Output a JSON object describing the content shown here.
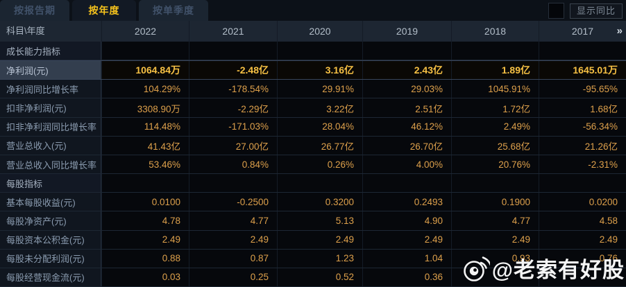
{
  "tabs": [
    {
      "label": "按报告期",
      "active": false
    },
    {
      "label": "按年度",
      "active": true
    },
    {
      "label": "按单季度",
      "active": false
    }
  ],
  "controls": {
    "show_yoy_label": "显示同比",
    "checkbox_checked": false
  },
  "table": {
    "corner_header": "科目\\年度",
    "years": [
      "2022",
      "2021",
      "2020",
      "2019",
      "2018",
      "2017"
    ],
    "more_icon": "»",
    "rows": [
      {
        "type": "section",
        "label": "成长能力指标",
        "values": [
          "",
          "",
          "",
          "",
          "",
          ""
        ]
      },
      {
        "type": "data",
        "label": "净利润(元)",
        "highlight": true,
        "values": [
          "1064.84万",
          "-2.48亿",
          "3.16亿",
          "2.43亿",
          "1.89亿",
          "1645.01万"
        ]
      },
      {
        "type": "data",
        "label": "净利润同比增长率",
        "values": [
          "104.29%",
          "-178.54%",
          "29.91%",
          "29.03%",
          "1045.91%",
          "-95.65%"
        ]
      },
      {
        "type": "data",
        "label": "扣非净利润(元)",
        "values": [
          "3308.90万",
          "-2.29亿",
          "3.22亿",
          "2.51亿",
          "1.72亿",
          "1.68亿"
        ]
      },
      {
        "type": "data",
        "label": "扣非净利润同比增长率",
        "values": [
          "114.48%",
          "-171.03%",
          "28.04%",
          "46.12%",
          "2.49%",
          "-56.34%"
        ]
      },
      {
        "type": "data",
        "label": "营业总收入(元)",
        "values": [
          "41.43亿",
          "27.00亿",
          "26.77亿",
          "26.70亿",
          "25.68亿",
          "21.26亿"
        ]
      },
      {
        "type": "data",
        "label": "营业总收入同比增长率",
        "values": [
          "53.46%",
          "0.84%",
          "0.26%",
          "4.00%",
          "20.76%",
          "-2.31%"
        ]
      },
      {
        "type": "section",
        "label": "每股指标",
        "values": [
          "",
          "",
          "",
          "",
          "",
          ""
        ]
      },
      {
        "type": "data",
        "label": "基本每股收益(元)",
        "values": [
          "0.0100",
          "-0.2500",
          "0.3200",
          "0.2493",
          "0.1900",
          "0.0200"
        ]
      },
      {
        "type": "data",
        "label": "每股净资产(元)",
        "values": [
          "4.78",
          "4.77",
          "5.13",
          "4.90",
          "4.77",
          "4.58"
        ]
      },
      {
        "type": "data",
        "label": "每股资本公积金(元)",
        "values": [
          "2.49",
          "2.49",
          "2.49",
          "2.49",
          "2.49",
          "2.49"
        ]
      },
      {
        "type": "data",
        "label": "每股未分配利润(元)",
        "values": [
          "0.88",
          "0.87",
          "1.23",
          "1.04",
          "0.93",
          "0.76"
        ]
      },
      {
        "type": "data",
        "label": "每股经营现金流(元)",
        "values": [
          "0.03",
          "0.25",
          "0.52",
          "0.36",
          "",
          ""
        ]
      }
    ]
  },
  "watermark": {
    "text": "@老索有好股",
    "logo": "weibo-logo"
  },
  "colors": {
    "value_gold": "#dda04b",
    "highlight_gold": "#f7c144",
    "active_tab_gold": "#f6c31c",
    "header_bg": "#1d2632",
    "label_text": "#8b9cb0"
  }
}
